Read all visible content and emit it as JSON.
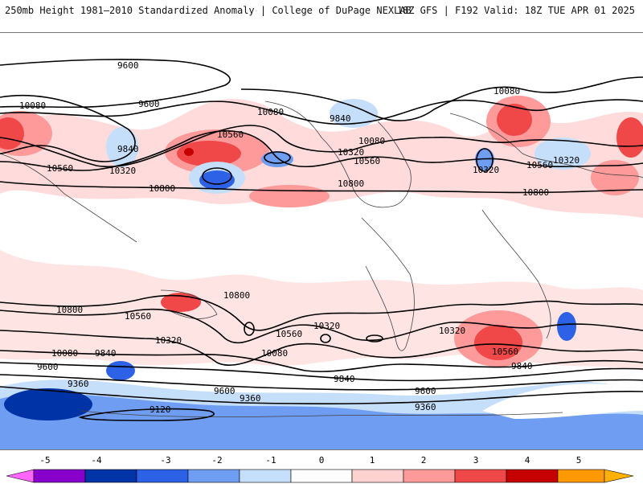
{
  "header": {
    "left_title": "250mb Height 1981–2010 Standardized Anomaly | College of DuPage NEXLAB",
    "right_title": "18Z GFS | F192 Valid: 18Z TUE APR 01 2025"
  },
  "contour_labels": [
    "9600",
    "9600",
    "10080",
    "10080",
    "9840",
    "9840",
    "10080",
    "10560",
    "10080",
    "10320",
    "10320",
    "10560",
    "10560",
    "10320",
    "10800",
    "10800",
    "10320",
    "10560",
    "10800",
    "10800",
    "10800",
    "10560",
    "10320",
    "10320",
    "10560",
    "10560",
    "10320",
    "10080",
    "9840",
    "10080",
    "9840",
    "9600",
    "9360",
    "9600",
    "9840",
    "9600",
    "9360",
    "9120",
    "9360"
  ],
  "colorbar": {
    "ticks": [
      "-5",
      "-4",
      "-3",
      "-2",
      "-1",
      "0",
      "1",
      "2",
      "3",
      "4",
      "5"
    ],
    "colors": [
      "#ff66ff",
      "#8800cc",
      "#0033a6",
      "#2e62e6",
      "#6f9df2",
      "#c5defa",
      "#ffffff",
      "#ffd2d2",
      "#ff9a9a",
      "#f04848",
      "#c40000",
      "#ff9900"
    ]
  }
}
